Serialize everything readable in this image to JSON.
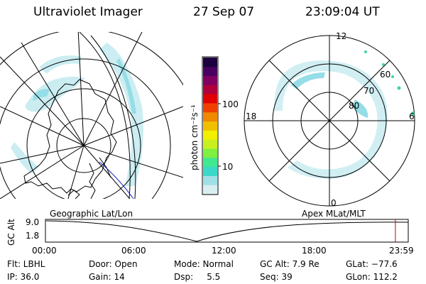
{
  "header": {
    "instrument": "Ultraviolet Imager",
    "date": "27 Sep 07",
    "time": "23:09:04 UT"
  },
  "colorbar": {
    "label": "photon cm⁻²s⁻¹",
    "ticks": [
      {
        "label": "100",
        "value": 100
      },
      {
        "label": "10",
        "value": 10
      }
    ],
    "colors": [
      "#d8eef0",
      "#9fe0e6",
      "#3ad8c8",
      "#40e890",
      "#7ef040",
      "#c8f020",
      "#f0f000",
      "#f0c000",
      "#f08800",
      "#f04000",
      "#e00000",
      "#b0003a",
      "#800060",
      "#4a0060",
      "#1c0040"
    ]
  },
  "polar_plot": {
    "top_label": "12",
    "bottom_label": "0",
    "left_label": "18",
    "right_label": "6",
    "ring_labels": [
      {
        "label": "60",
        "lat": 60
      },
      {
        "label": "70",
        "lat": 70
      },
      {
        "label": "80",
        "lat": 80
      }
    ]
  },
  "timeline": {
    "left_title": "Geographic Lat/Lon",
    "right_title": "Apex MLat/MLT",
    "axis_label": "GC Alt",
    "y_ticks": [
      "9.0",
      "1.8"
    ],
    "x_ticks": [
      "00:00",
      "06:00",
      "12:00",
      "18:00",
      "23:59"
    ],
    "marker_time_hours": 23.15,
    "marker_color": "#cc0000"
  },
  "info": {
    "row1": {
      "flt": "Flt: LBHL",
      "door": "Door: Open",
      "mode": "Mode: Normal",
      "gc_alt": "GC Alt: 7.9 Re",
      "glat": "GLat: −77.6"
    },
    "row2": {
      "ip": "IP: 36.0",
      "gain": "Gain: 14",
      "dsp": "Dsp:     5.5",
      "seq": "Seq: 39",
      "glon": "GLon: 112.2"
    }
  }
}
